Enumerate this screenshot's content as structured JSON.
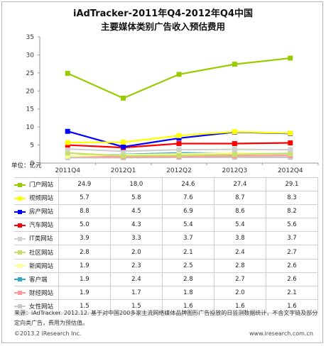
{
  "title_line1": "iAdTracker-2011年Q4-2012年Q4中国",
  "title_line2": "主要媒体类别广告收入预估费用",
  "unit_label": "单位：亿元",
  "source_text": "来源：iAdTracker. 2012.12. 基于对中国200多家主流网络媒体品牌图形广告投放的日监测数据统计，不含文字链及部分定向类广告，费用为预估值。",
  "copyright": "©2013.2 iResearch Inc.",
  "website": "www.iresearch.com.cn",
  "chart_data": {
    "type": "line",
    "categories": [
      "2011Q4",
      "2012Q1",
      "2012Q2",
      "2012Q3",
      "2012Q4"
    ],
    "ylim": [
      0,
      35
    ],
    "yticks": [
      0,
      5,
      10,
      15,
      20,
      25,
      30,
      35
    ],
    "grid": false,
    "legend": "table-below",
    "series": [
      {
        "name": "门户网站",
        "color": "#99cc00",
        "values": [
          24.9,
          18.0,
          24.6,
          27.4,
          29.1
        ]
      },
      {
        "name": "视频网站",
        "color": "#ffff00",
        "values": [
          5.7,
          5.8,
          7.6,
          8.7,
          8.3
        ]
      },
      {
        "name": "房产网站",
        "color": "#0000ff",
        "values": [
          8.8,
          4.5,
          6.9,
          8.6,
          8.2
        ]
      },
      {
        "name": "汽车网站",
        "color": "#ff0000",
        "values": [
          5.0,
          4.3,
          5.4,
          5.4,
          5.6
        ]
      },
      {
        "name": "IT类网站",
        "color": "#d0d0d0",
        "values": [
          3.9,
          3.3,
          3.7,
          3.8,
          3.7
        ]
      },
      {
        "name": "社区网站",
        "color": "#c6e06a",
        "values": [
          2.8,
          2.0,
          2.1,
          2.4,
          2.7
        ]
      },
      {
        "name": "新闻网站",
        "color": "#ffff99",
        "values": [
          1.9,
          2.3,
          2.5,
          2.8,
          2.6
        ]
      },
      {
        "name": "客户端",
        "color": "#33aacc",
        "values": [
          1.9,
          2.4,
          2.8,
          2.7,
          2.6
        ]
      },
      {
        "name": "财经网站",
        "color": "#ff9999",
        "values": [
          1.9,
          1.7,
          1.8,
          2.0,
          2.1
        ]
      },
      {
        "name": "女性网站",
        "color": "#c8c8c8",
        "values": [
          1.5,
          1.5,
          1.6,
          1.6,
          1.6
        ]
      }
    ]
  }
}
